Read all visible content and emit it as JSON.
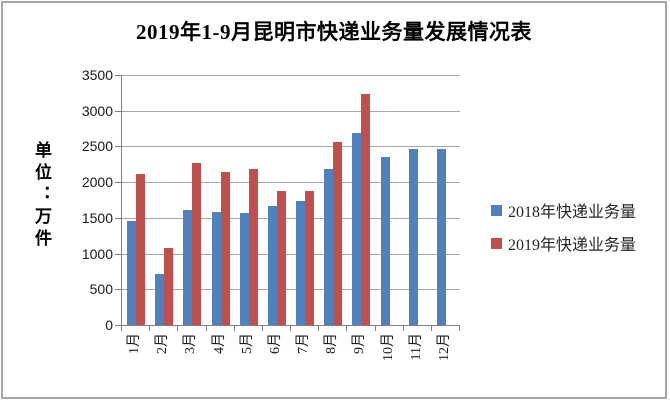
{
  "chart_data": {
    "type": "bar",
    "title": "2019年1-9月昆明市快递业务量发展情况表",
    "unit_label": "单位：万件",
    "ylabel": "单位：万件",
    "xlabel": "",
    "categories": [
      "1月",
      "2月",
      "3月",
      "4月",
      "5月",
      "6月",
      "7月",
      "8月",
      "9月",
      "10月",
      "11月",
      "12月"
    ],
    "series": [
      {
        "name": "2018年快递业务量",
        "color": "#4F81BD",
        "values": [
          1450,
          720,
          1610,
          1580,
          1570,
          1660,
          1740,
          2190,
          2690,
          2350,
          2460,
          2460
        ]
      },
      {
        "name": "2019年快递业务量",
        "color": "#C0504D",
        "values": [
          2110,
          1080,
          2270,
          2140,
          2180,
          1880,
          1880,
          2560,
          3240,
          null,
          null,
          null
        ]
      }
    ],
    "ylim": [
      0,
      3500
    ],
    "ytick_step": 500,
    "yticks": [
      "3500",
      "3000",
      "2500",
      "2000",
      "1500",
      "1000",
      "500",
      "0"
    ],
    "grid": true,
    "legend_position": "right",
    "axis_color": "#808080",
    "gridline_color": "#a6a6a6"
  }
}
